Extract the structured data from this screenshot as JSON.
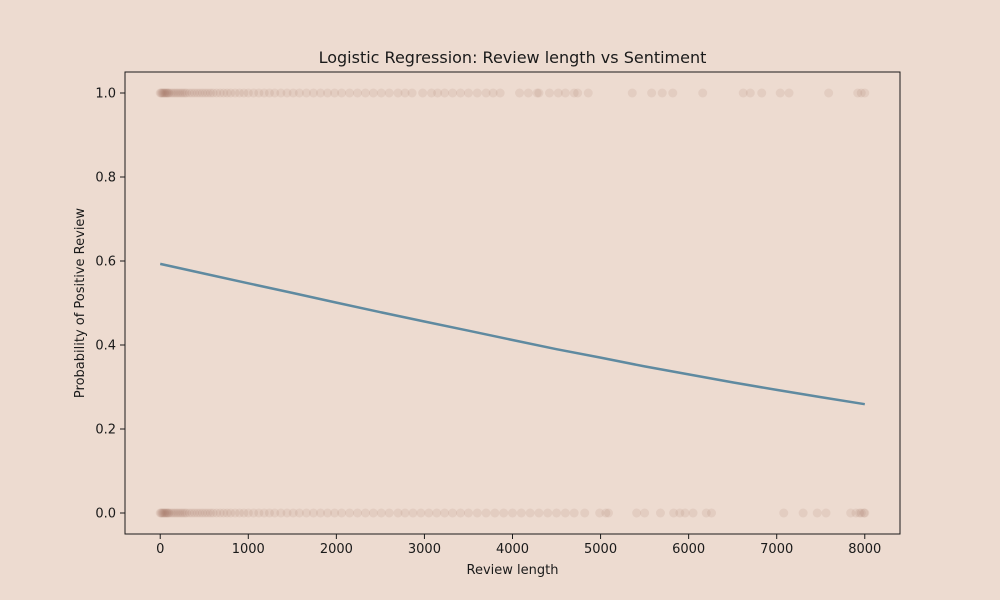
{
  "chart_data": {
    "type": "scatter",
    "title": "Logistic Regression: Review length vs Sentiment",
    "xlabel": "Review length",
    "ylabel": "Probability of Positive Review",
    "xlim": [
      -400,
      8400
    ],
    "ylim": [
      -0.05,
      1.05
    ],
    "x_ticks": [
      0,
      1000,
      2000,
      3000,
      4000,
      5000,
      6000,
      7000,
      8000
    ],
    "x_tick_labels": [
      "0",
      "1000",
      "2000",
      "3000",
      "4000",
      "5000",
      "6000",
      "7000",
      "8000"
    ],
    "y_ticks": [
      0.0,
      0.2,
      0.4,
      0.6,
      0.8,
      1.0
    ],
    "y_tick_labels": [
      "0.0",
      "0.2",
      "0.4",
      "0.6",
      "0.8",
      "1.0"
    ],
    "grid": false,
    "legend": "none",
    "series": [
      {
        "kind": "scatter",
        "color": "#9e6a57",
        "opacity": 0.12,
        "y_value": 1,
        "x": [
          0,
          10,
          20,
          30,
          40,
          50,
          60,
          70,
          80,
          90,
          100,
          120,
          140,
          160,
          180,
          200,
          220,
          240,
          260,
          280,
          300,
          330,
          360,
          390,
          420,
          450,
          480,
          510,
          540,
          570,
          600,
          640,
          680,
          720,
          760,
          800,
          850,
          900,
          950,
          1000,
          1060,
          1120,
          1180,
          1240,
          1300,
          1370,
          1440,
          1510,
          1580,
          1660,
          1740,
          1820,
          1900,
          1980,
          2060,
          2150,
          2240,
          2330,
          2420,
          2510,
          2600,
          2700,
          2780,
          2860,
          2980,
          3080,
          3150,
          3230,
          3320,
          3410,
          3500,
          3600,
          3700,
          3780,
          3860,
          4080,
          4180,
          4280,
          4300,
          4420,
          4520,
          4600,
          4700,
          4740,
          4860,
          5360,
          5580,
          5700,
          5820,
          6160,
          6620,
          6700,
          6830,
          7040,
          7140,
          7590,
          7920,
          7960,
          8000
        ]
      },
      {
        "kind": "scatter",
        "color": "#9e6a57",
        "opacity": 0.12,
        "y_value": 0,
        "x": [
          0,
          10,
          20,
          30,
          40,
          50,
          60,
          70,
          80,
          90,
          100,
          120,
          140,
          160,
          180,
          200,
          220,
          240,
          260,
          280,
          300,
          330,
          360,
          390,
          420,
          450,
          480,
          510,
          540,
          570,
          600,
          640,
          680,
          720,
          760,
          800,
          850,
          900,
          950,
          1000,
          1060,
          1120,
          1180,
          1240,
          1300,
          1370,
          1440,
          1510,
          1580,
          1660,
          1740,
          1820,
          1900,
          1980,
          2060,
          2150,
          2240,
          2330,
          2420,
          2510,
          2600,
          2700,
          2780,
          2870,
          2960,
          3050,
          3140,
          3230,
          3320,
          3410,
          3500,
          3600,
          3700,
          3800,
          3900,
          4000,
          4100,
          4200,
          4300,
          4400,
          4500,
          4600,
          4700,
          4820,
          4990,
          5060,
          5090,
          5410,
          5500,
          5680,
          5830,
          5900,
          5960,
          6050,
          6200,
          6260,
          7080,
          7300,
          7460,
          7560,
          7840,
          7900,
          7940,
          7960,
          7990,
          8000
        ]
      },
      {
        "kind": "line",
        "color": "#5f8aa0",
        "x": [
          0,
          500,
          1000,
          1500,
          2000,
          2500,
          3000,
          3500,
          4000,
          4500,
          5000,
          5500,
          6000,
          6500,
          7000,
          7500,
          8000
        ],
        "y": [
          0.593,
          0.57,
          0.547,
          0.524,
          0.501,
          0.478,
          0.456,
          0.434,
          0.412,
          0.39,
          0.37,
          0.349,
          0.33,
          0.311,
          0.293,
          0.276,
          0.259
        ]
      }
    ]
  }
}
